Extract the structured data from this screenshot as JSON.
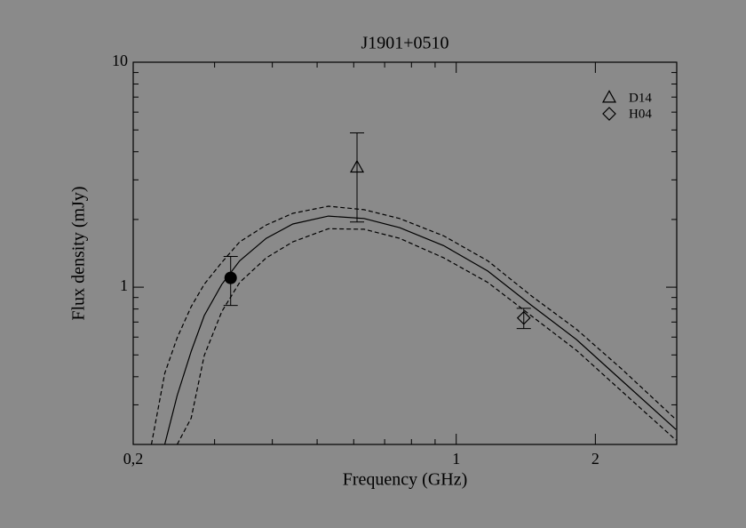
{
  "chart_data": {
    "type": "scatter",
    "title": "J1901+0510",
    "xlabel": "Frequency (GHz)",
    "ylabel": "Flux density (mJy)",
    "xscale": "log",
    "yscale": "log",
    "xlim": [
      0.2,
      3
    ],
    "ylim": [
      0.2,
      10
    ],
    "xticks": [
      {
        "value": 0.2,
        "label": "0,2"
      },
      1,
      2
    ],
    "yticks": [
      1,
      10
    ],
    "xminorticks": [
      0.3,
      0.4,
      0.5,
      0.6,
      0.7,
      0.8,
      0.9,
      3
    ],
    "yminorticks": [
      0.3,
      0.4,
      0.5,
      0.6,
      0.7,
      0.8,
      0.9,
      2,
      3,
      4,
      5,
      6,
      7,
      8,
      9
    ],
    "color": "#000000",
    "series": [
      {
        "marker": "filled-circle",
        "x": [
          0.325
        ],
        "values": [
          1.1
        ],
        "errors": [
          0.27
        ]
      },
      {
        "name": "D14",
        "marker": "triangle",
        "x": [
          0.61
        ],
        "values": [
          3.4
        ],
        "errors": [
          1.45
        ]
      },
      {
        "name": "H04",
        "marker": "diamond",
        "x": [
          1.4
        ],
        "values": [
          0.73
        ],
        "errors": [
          0.075
        ]
      }
    ],
    "curves": {
      "x": [
        0.219,
        0.234,
        0.249,
        0.267,
        0.285,
        0.311,
        0.34,
        0.388,
        0.443,
        0.529,
        0.632,
        0.754,
        0.94,
        1.17,
        1.46,
        1.82,
        2.28,
        2.99
      ],
      "series": [
        {
          "style": "solid",
          "values": [
            null,
            0.2,
            0.33,
            0.519,
            0.748,
            1.03,
            1.31,
            1.65,
            1.91,
            2.07,
            2.02,
            1.84,
            1.53,
            1.18,
            0.826,
            0.585,
            0.385,
            0.233
          ]
        },
        {
          "style": "dashed",
          "values": [
            0.2,
            0.414,
            0.596,
            0.82,
            1.03,
            1.29,
            1.59,
            1.89,
            2.13,
            2.29,
            2.21,
            2.02,
            1.69,
            1.31,
            0.91,
            0.65,
            0.433,
            0.258
          ]
        },
        {
          "style": "dashed",
          "values": [
            null,
            null,
            0.2,
            0.262,
            0.497,
            0.78,
            1.05,
            1.35,
            1.59,
            1.82,
            1.81,
            1.65,
            1.35,
            1.05,
            0.741,
            0.524,
            0.345,
            0.209
          ]
        }
      ]
    }
  }
}
